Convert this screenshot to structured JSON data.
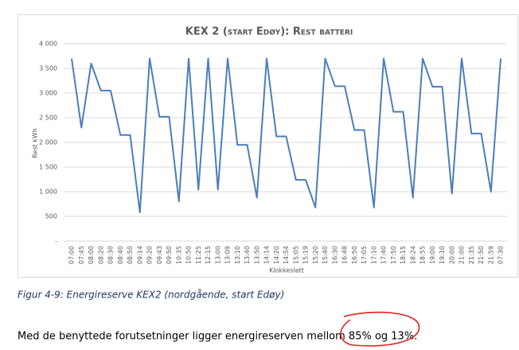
{
  "chart_data": {
    "type": "line",
    "title": "KEX 2 (start Edøy): Rest batteri",
    "x_label": "Klokkeslett",
    "y_label": "Rest kWh",
    "categories": [
      "07:00",
      "07:45",
      "08:00",
      "08:20",
      "08:30",
      "08:40",
      "08:50",
      "09:14",
      "09:20",
      "09:43",
      "09:50",
      "10:35",
      "10:50",
      "11:25",
      "12:15",
      "13:00",
      "13:09",
      "13:10",
      "13:40",
      "13:50",
      "14:14",
      "14:20",
      "14:54",
      "15:05",
      "15:19",
      "15:20",
      "15:40",
      "16:30",
      "16:48",
      "16:50",
      "17:05",
      "17:10",
      "17:40",
      "17:50",
      "18:15",
      "18:24",
      "18:55",
      "19:00",
      "19:10",
      "20:00",
      "21:00",
      "21:35",
      "21:50",
      "21:59",
      "07:30"
    ],
    "series": [
      {
        "color": "#4a7ebb",
        "values": [
          3700,
          2300,
          3600,
          3050,
          3050,
          2150,
          2150,
          580,
          3700,
          2520,
          2520,
          800,
          3700,
          1040,
          3700,
          1040,
          3700,
          1950,
          1950,
          880,
          3700,
          2120,
          2120,
          1240,
          1240,
          680,
          3700,
          3140,
          3140,
          2250,
          2250,
          680,
          3700,
          2620,
          2620,
          880,
          3700,
          3130,
          3130,
          960,
          3700,
          2180,
          2180,
          1000,
          3700
        ]
      }
    ],
    "ylim": [
      0,
      4000
    ],
    "yticks": [
      {
        "value": 0,
        "label": "-"
      },
      500,
      {
        "value": 1000,
        "label": "1 000"
      },
      {
        "value": 1500,
        "label": "1 500"
      },
      {
        "value": 2000,
        "label": "2 000"
      },
      {
        "value": 2500,
        "label": "2 500"
      },
      {
        "value": 3000,
        "label": "3 000"
      },
      {
        "value": 3500,
        "label": "3 500"
      },
      {
        "value": 4000,
        "label": "4 000"
      }
    ],
    "grid": true
  },
  "caption": "Figur 4-9: Energireserve KEX2 (nordgående, start Edøy)",
  "body_text": "Med de benyttede forutsetninger ligger energireserven mellom 85% og 13%."
}
